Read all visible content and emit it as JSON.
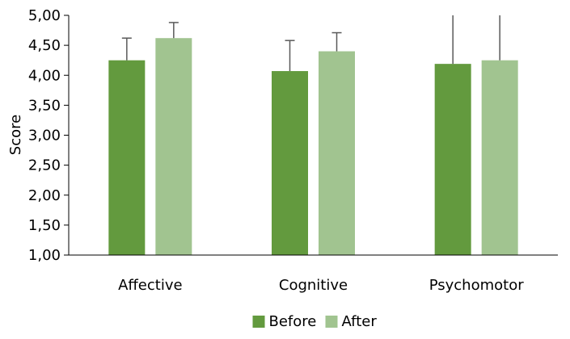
{
  "chart_data": {
    "type": "bar",
    "title": "",
    "xlabel": "",
    "ylabel": "Score",
    "ylim": [
      1.0,
      5.0
    ],
    "yticks": [
      1.0,
      1.5,
      2.0,
      2.5,
      3.0,
      3.5,
      4.0,
      4.5,
      5.0
    ],
    "ytick_labels": [
      "1,00",
      "1,50",
      "2,00",
      "2,50",
      "3,00",
      "3,50",
      "4,00",
      "4,50",
      "5,00"
    ],
    "categories": [
      "Affective",
      "Cognitive",
      "Psychomotor"
    ],
    "series": [
      {
        "name": "Before",
        "color": "#639A3E",
        "values": [
          4.25,
          4.07,
          4.19
        ],
        "error_plus": [
          0.37,
          0.51,
          0.81
        ]
      },
      {
        "name": "After",
        "color": "#A1C490",
        "values": [
          4.62,
          4.4,
          4.25
        ],
        "error_plus": [
          0.26,
          0.31,
          0.75
        ]
      }
    ],
    "legend_position": "bottom",
    "grid": false
  }
}
